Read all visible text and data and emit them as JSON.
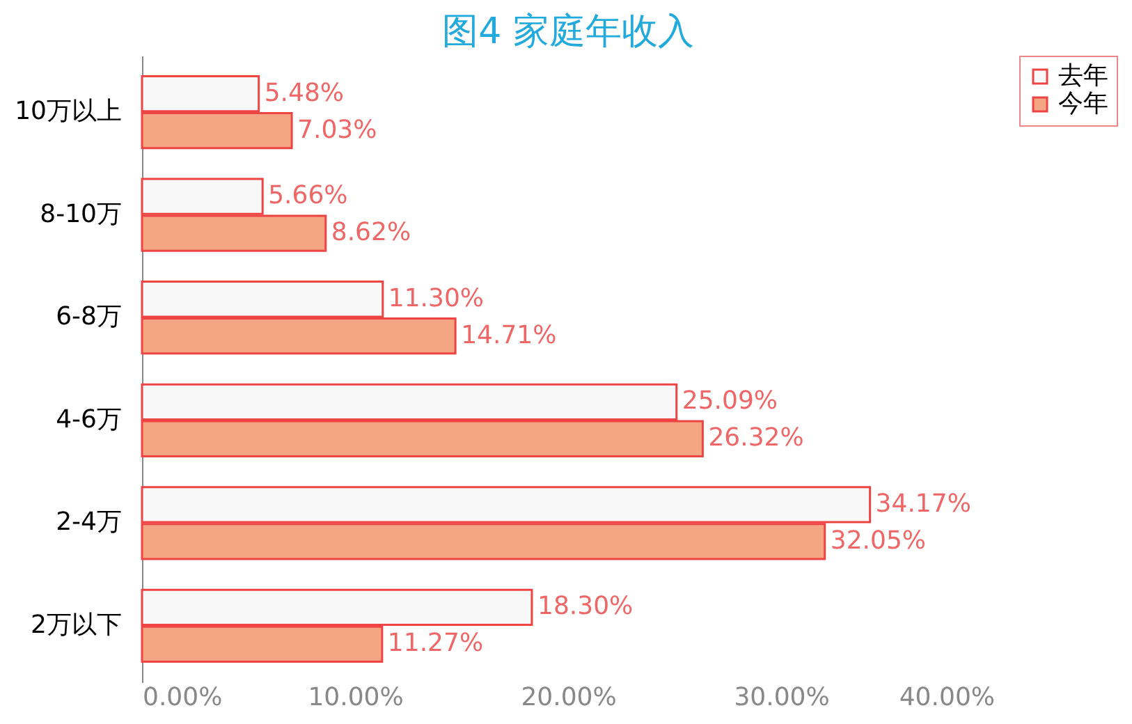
{
  "chart_data": {
    "type": "bar",
    "orientation": "horizontal",
    "title": "图4 家庭年收入",
    "categories": [
      "10万以上",
      "8-10万",
      "6-8万",
      "4-6万",
      "2-4万",
      "2万以下"
    ],
    "series": [
      {
        "name": "去年",
        "color": "#f8f8f8",
        "values": [
          5.48,
          5.66,
          11.3,
          25.09,
          34.17,
          18.3
        ],
        "value_labels": [
          "5.48%",
          "5.66%",
          "11.30%",
          "25.09%",
          "34.17%",
          "18.30%"
        ]
      },
      {
        "name": "今年",
        "color": "#f4a582",
        "values": [
          7.03,
          8.62,
          14.71,
          26.32,
          32.05,
          11.27
        ],
        "value_labels": [
          "7.03%",
          "8.62%",
          "14.71%",
          "26.32%",
          "32.05%",
          "11.27%"
        ]
      }
    ],
    "xlim": [
      0,
      40
    ],
    "xticks": [
      {
        "value": 0,
        "label": "0.00%"
      },
      {
        "value": 10,
        "label": "10.00%"
      },
      {
        "value": 20,
        "label": "20.00%"
      },
      {
        "value": 30,
        "label": "30.00%"
      },
      {
        "value": 40,
        "label": "40.00%"
      }
    ],
    "grid": false,
    "legend": "right"
  }
}
